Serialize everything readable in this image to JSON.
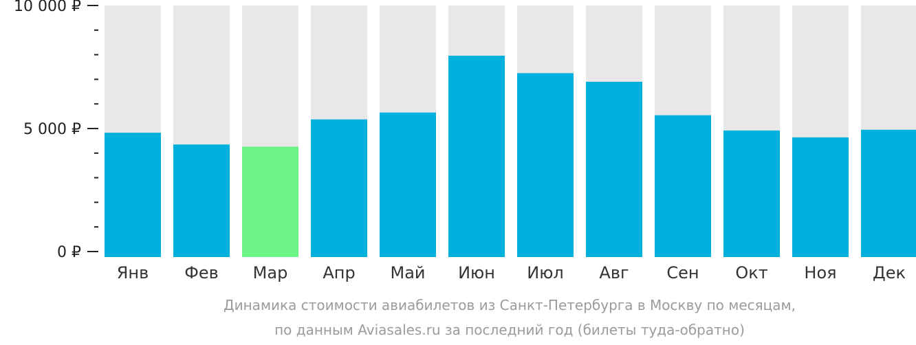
{
  "chart_data": {
    "type": "bar",
    "categories": [
      "Янв",
      "Фев",
      "Мар",
      "Апр",
      "Май",
      "Июн",
      "Июл",
      "Авг",
      "Сен",
      "Окт",
      "Ноя",
      "Дек"
    ],
    "values": [
      4830,
      4350,
      4260,
      5370,
      5650,
      7960,
      7250,
      6900,
      5540,
      4920,
      4640,
      4950
    ],
    "ylim": [
      0,
      10000
    ],
    "yticks": [
      {
        "value": 0,
        "label": "0 ₽"
      },
      {
        "value": 5000,
        "label": "5 000 ₽"
      },
      {
        "value": 10000,
        "label": "10 000 ₽"
      }
    ],
    "highlight_category": "Мар",
    "colors": {
      "bar": "#00b1dd",
      "highlight": "#6cf487",
      "background_bar": "#e8e8e8",
      "axis": "#222222"
    }
  },
  "caption": {
    "line1": "Динамика стоимости авиабилетов из Санкт-Петербурга в Москву по месяцам,",
    "line2": "по данным Aviasales.ru за последний год (билеты туда-обратно)"
  }
}
